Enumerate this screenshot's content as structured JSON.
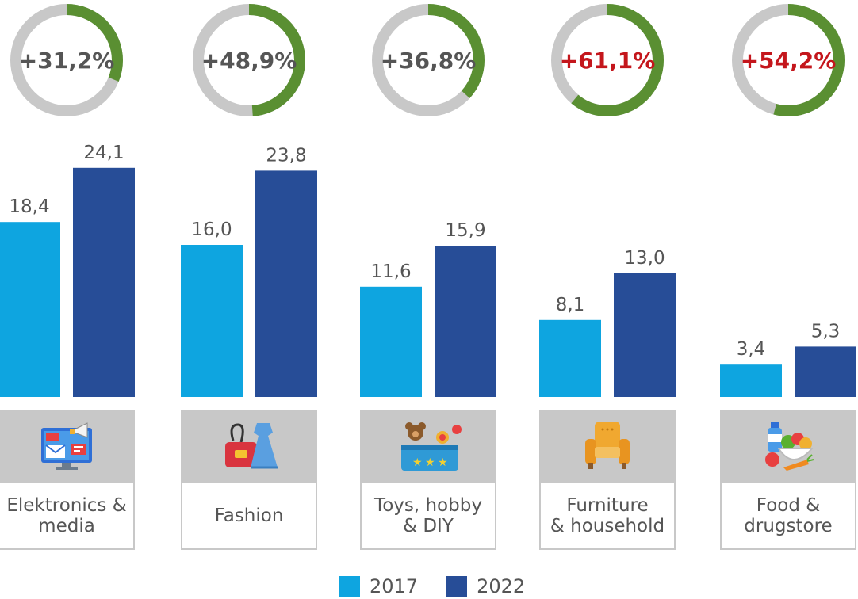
{
  "chart_data": {
    "type": "bar",
    "categories": [
      "Elektronics &\nmedia",
      "Fashion",
      "Toys, hobby\n& DIY",
      "Furniture\n& household",
      "Food &\ndrugstore"
    ],
    "series": [
      {
        "name": "2017",
        "values": [
          18.4,
          16.0,
          11.6,
          8.1,
          3.4
        ],
        "value_labels": [
          "18,4",
          "16,0",
          "11,6",
          "8,1",
          "3,4"
        ]
      },
      {
        "name": "2022",
        "values": [
          24.1,
          23.8,
          15.9,
          13.0,
          5.3
        ],
        "value_labels": [
          "24,1",
          "23,8",
          "15,9",
          "13,0",
          "5,3"
        ]
      }
    ],
    "growth": [
      {
        "label": "+31,2%",
        "value": 31.2,
        "highlight": false
      },
      {
        "label": "+48,9%",
        "value": 48.9,
        "highlight": false
      },
      {
        "label": "+36,8%",
        "value": 36.8,
        "highlight": false
      },
      {
        "label": "+61,1%",
        "value": 61.1,
        "highlight": true
      },
      {
        "label": "+54,2%",
        "value": 54.2,
        "highlight": true
      }
    ],
    "icons": [
      "electronics-media-icon",
      "fashion-icon",
      "toys-icon",
      "armchair-icon",
      "groceries-icon"
    ],
    "ylim": [
      0,
      30
    ],
    "grid": false,
    "legend_position": "bottom-center"
  },
  "colors": {
    "series_2017": "#0ea5e0",
    "series_2022": "#274d97",
    "ring_track": "#c8c8c8",
    "ring_fill": "#5a8f32",
    "growth_text": "#555555",
    "growth_text_highlight": "#c4161c",
    "value_text": "#555555"
  },
  "legend": {
    "item_2017": "2017",
    "item_2022": "2022"
  }
}
